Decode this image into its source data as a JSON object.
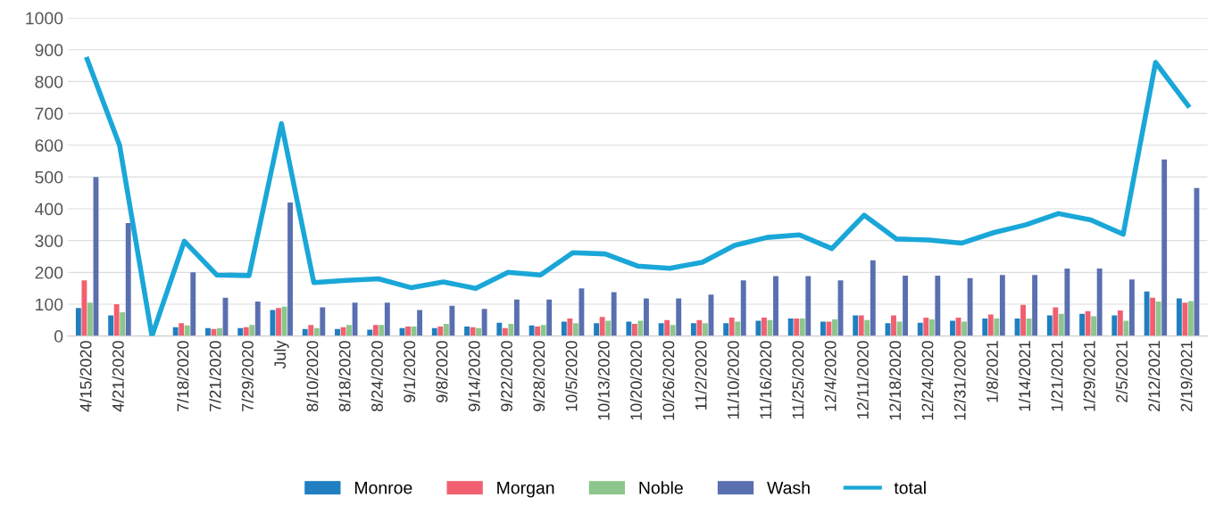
{
  "chart_data": {
    "type": "bar",
    "categories": [
      "4/15/2020",
      "4/21/2020",
      null,
      "7/18/2020",
      "7/21/2020",
      "7/29/2020",
      "July",
      "8/10/2020",
      "8/18/2020",
      "8/24/2020",
      "9/1/2020",
      "9/8/2020",
      "9/14/2020",
      "9/22/2020",
      "9/28/2020",
      "10/5/2020",
      "10/13/2020",
      "10/20/2020",
      "10/26/2020",
      "11/2/2020",
      "11/10/2020",
      "11/16/2020",
      "11/25/2020",
      "12/4/2020",
      "12/11/2020",
      "12/18/2020",
      "12/24/2020",
      "12/31/2020",
      "1/8/2021",
      "1/14/2021",
      "1/21/2021",
      "1/29/2021",
      "2/5/2021",
      "2/12/2021",
      "2/19/2021"
    ],
    "series": [
      {
        "name": "Monroe",
        "color": "#1f7fc0",
        "values": [
          88,
          65,
          null,
          28,
          25,
          25,
          82,
          22,
          22,
          20,
          25,
          25,
          30,
          42,
          33,
          45,
          40,
          45,
          40,
          40,
          40,
          48,
          55,
          45,
          65,
          40,
          42,
          48,
          55,
          55,
          65,
          70,
          65,
          140,
          118
        ]
      },
      {
        "name": "Morgan",
        "color": "#f06070",
        "values": [
          175,
          100,
          null,
          40,
          22,
          28,
          88,
          35,
          28,
          35,
          30,
          30,
          28,
          25,
          30,
          55,
          60,
          38,
          50,
          50,
          58,
          58,
          55,
          45,
          65,
          65,
          58,
          58,
          68,
          98,
          90,
          78,
          80,
          120,
          105
        ]
      },
      {
        "name": "Noble",
        "color": "#8cc68c",
        "values": [
          105,
          75,
          null,
          33,
          25,
          35,
          92,
          25,
          35,
          35,
          30,
          38,
          25,
          38,
          35,
          40,
          48,
          48,
          35,
          40,
          45,
          50,
          55,
          52,
          50,
          45,
          52,
          45,
          55,
          55,
          70,
          62,
          48,
          108,
          110
        ]
      },
      {
        "name": "Wash",
        "color": "#5a6fb0",
        "values": [
          500,
          355,
          null,
          200,
          120,
          108,
          420,
          90,
          105,
          105,
          82,
          95,
          85,
          115,
          115,
          150,
          138,
          118,
          118,
          130,
          175,
          188,
          188,
          175,
          238,
          190,
          190,
          182,
          192,
          192,
          212,
          212,
          178,
          555,
          465
        ]
      },
      {
        "name": "total",
        "type": "line",
        "color": "#1aa7d8",
        "values": [
          870,
          600,
          0,
          298,
          192,
          190,
          668,
          168,
          175,
          180,
          152,
          170,
          150,
          200,
          192,
          262,
          258,
          220,
          213,
          232,
          285,
          310,
          318,
          275,
          380,
          305,
          302,
          292,
          325,
          350,
          385,
          365,
          320,
          860,
          725
        ]
      }
    ],
    "ylim": [
      0,
      1000
    ],
    "yticks": [
      0,
      100,
      200,
      300,
      400,
      500,
      600,
      700,
      800,
      900,
      1000
    ],
    "grid": "y",
    "legend": "bottom"
  }
}
